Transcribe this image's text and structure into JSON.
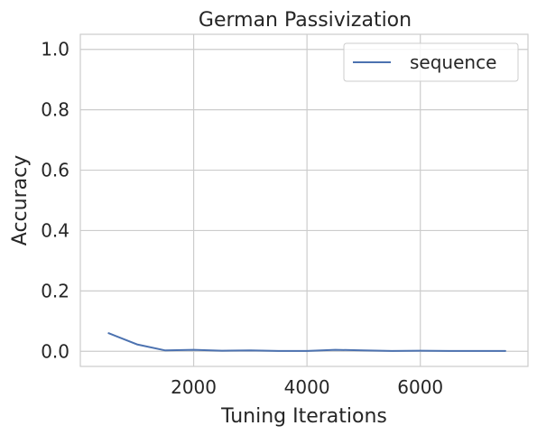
{
  "chart_data": {
    "type": "line",
    "title": "German Passivization",
    "xlabel": "Tuning Iterations",
    "ylabel": "Accuracy",
    "xlim": [
      0,
      7900
    ],
    "ylim": [
      -0.05,
      1.05
    ],
    "xticks": [
      2000,
      4000,
      6000
    ],
    "xtick_labels": [
      "2000",
      "4000",
      "6000"
    ],
    "yticks": [
      0.0,
      0.2,
      0.4,
      0.6,
      0.8,
      1.0
    ],
    "ytick_labels": [
      "0.0",
      "0.2",
      "0.4",
      "0.6",
      "0.8",
      "1.0"
    ],
    "grid": true,
    "legend_position": "top-right",
    "series": [
      {
        "name": "sequence",
        "color": "#4c72b0",
        "x": [
          500,
          1000,
          1500,
          2000,
          2500,
          3000,
          3500,
          4000,
          4500,
          5000,
          5500,
          6000,
          6500,
          7000,
          7500
        ],
        "y": [
          0.06,
          0.023,
          0.003,
          0.005,
          0.002,
          0.003,
          0.001,
          0.001,
          0.005,
          0.003,
          0.001,
          0.002,
          0.001,
          0.001,
          0.001
        ]
      }
    ]
  }
}
